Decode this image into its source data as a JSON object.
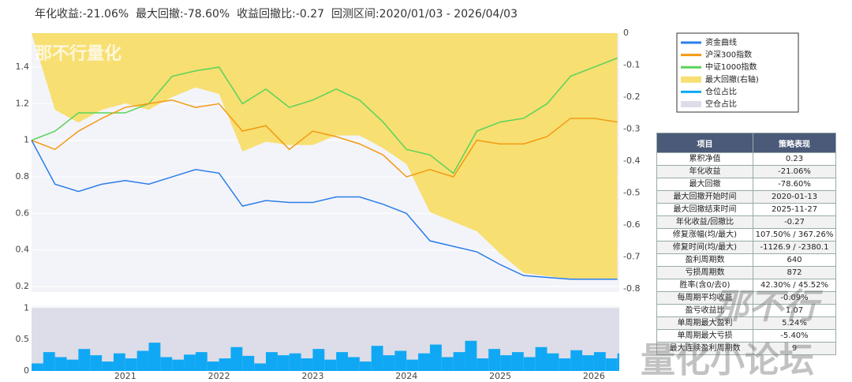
{
  "header": {
    "title": "年化收益:-21.06%  最大回撤:-78.60%  收益回撤比:-0.27  回测区间:2020/01/03 - 2026/04/03"
  },
  "watermarks": [
    "那不行量化",
    "那不行",
    "量化小论坛"
  ],
  "chart_data": [
    {
      "type": "line",
      "x": [
        2020,
        2020.25,
        2020.5,
        2020.75,
        2021,
        2021.25,
        2021.5,
        2021.75,
        2022,
        2022.25,
        2022.5,
        2022.75,
        2023,
        2023.25,
        2023.5,
        2023.75,
        2024,
        2024.25,
        2024.5,
        2024.75,
        2025,
        2025.25,
        2025.5,
        2025.75,
        2026,
        2026.25
      ],
      "xlim": [
        2020,
        2026.27
      ],
      "ylim": [
        0.17,
        1.586
      ],
      "yticks": [
        0.2,
        0.4,
        0.6,
        0.8,
        1,
        1.2,
        1.4
      ],
      "y2lim": [
        -0.81,
        0
      ],
      "y2ticks": [
        -0.8,
        -0.7,
        -0.6,
        -0.5,
        -0.4,
        -0.3,
        -0.2,
        -0.1,
        0
      ],
      "grid": true,
      "series": [
        {
          "name": "资金曲线",
          "color": "#2b7de9",
          "values": [
            1.0,
            0.76,
            0.72,
            0.76,
            0.78,
            0.76,
            0.8,
            0.84,
            0.82,
            0.64,
            0.67,
            0.66,
            0.66,
            0.69,
            0.69,
            0.65,
            0.6,
            0.45,
            0.42,
            0.39,
            0.32,
            0.26,
            0.25,
            0.24,
            0.24,
            0.24
          ]
        },
        {
          "name": "沪深300指数",
          "color": "#f39a12",
          "values": [
            1.0,
            0.95,
            1.05,
            1.12,
            1.18,
            1.2,
            1.22,
            1.18,
            1.2,
            1.05,
            1.08,
            0.95,
            1.05,
            1.02,
            0.98,
            0.92,
            0.8,
            0.84,
            0.8,
            1.0,
            0.98,
            0.98,
            1.02,
            1.12,
            1.12,
            1.1
          ]
        },
        {
          "name": "中证1000指数",
          "color": "#5ad35a",
          "values": [
            1.0,
            1.05,
            1.15,
            1.15,
            1.15,
            1.2,
            1.35,
            1.38,
            1.4,
            1.2,
            1.28,
            1.18,
            1.22,
            1.28,
            1.22,
            1.1,
            0.95,
            0.92,
            0.82,
            1.05,
            1.1,
            1.12,
            1.2,
            1.35,
            1.4,
            1.45
          ]
        },
        {
          "name": "最大回撤(右轴)",
          "color": "#f7df72",
          "axis": "y2",
          "values": [
            0,
            -0.24,
            -0.28,
            -0.24,
            -0.22,
            -0.24,
            -0.2,
            -0.17,
            -0.19,
            -0.37,
            -0.34,
            -0.35,
            -0.35,
            -0.32,
            -0.32,
            -0.36,
            -0.41,
            -0.56,
            -0.59,
            -0.62,
            -0.69,
            -0.75,
            -0.76,
            -0.77,
            -0.77,
            -0.77
          ]
        }
      ]
    },
    {
      "type": "bar",
      "x": [
        2020,
        2020.125,
        2020.25,
        2020.375,
        2020.5,
        2020.625,
        2020.75,
        2020.875,
        2021,
        2021.125,
        2021.25,
        2021.375,
        2021.5,
        2021.625,
        2021.75,
        2021.875,
        2022,
        2022.125,
        2022.25,
        2022.375,
        2022.5,
        2022.625,
        2022.75,
        2022.875,
        2023,
        2023.125,
        2023.25,
        2023.375,
        2023.5,
        2023.625,
        2023.75,
        2023.875,
        2024,
        2024.125,
        2024.25,
        2024.375,
        2024.5,
        2024.625,
        2024.75,
        2024.875,
        2025,
        2025.125,
        2025.25,
        2025.375,
        2025.5,
        2025.625,
        2025.75,
        2025.875,
        2026,
        2026.125,
        2026.25
      ],
      "xlim": [
        2020,
        2026.27
      ],
      "xticks": [
        2021,
        2022,
        2023,
        2024,
        2025,
        2026
      ],
      "ylim": [
        0,
        1.03
      ],
      "yticks": [
        0,
        0.5,
        1
      ],
      "series": [
        {
          "name": "仓位占比",
          "color": "#10a8f5",
          "values": [
            0.12,
            0.3,
            0.22,
            0.18,
            0.35,
            0.25,
            0.15,
            0.28,
            0.2,
            0.32,
            0.45,
            0.22,
            0.18,
            0.26,
            0.3,
            0.15,
            0.2,
            0.38,
            0.24,
            0.12,
            0.3,
            0.25,
            0.28,
            0.2,
            0.35,
            0.18,
            0.3,
            0.22,
            0.15,
            0.4,
            0.25,
            0.32,
            0.18,
            0.28,
            0.42,
            0.22,
            0.3,
            0.48,
            0.2,
            0.35,
            0.25,
            0.3,
            0.22,
            0.38,
            0.28,
            0.2,
            0.33,
            0.25,
            0.3,
            0.2,
            0.28
          ]
        },
        {
          "name": "空仓占比",
          "color": "#dcdde8"
        }
      ]
    }
  ],
  "table": {
    "header": [
      "项目",
      "策略表现"
    ],
    "rows": [
      [
        "累积净值",
        "0.23"
      ],
      [
        "年化收益",
        "-21.06%"
      ],
      [
        "最大回撤",
        "-78.60%"
      ],
      [
        "最大回撤开始时间",
        "2020-01-13"
      ],
      [
        "最大回撤结束时间",
        "2025-11-27"
      ],
      [
        "年化收益/回撤比",
        "-0.27"
      ],
      [
        "修复涨幅(均/最大)",
        "107.50% / 367.26%"
      ],
      [
        "修复时间(均/最大)",
        "-1126.9 / -2380.1"
      ],
      [
        "盈利周期数",
        "640"
      ],
      [
        "亏损周期数",
        "872"
      ],
      [
        "胜率(含0/去0)",
        "42.30% / 45.52%"
      ],
      [
        "每周期平均收益",
        "-0.09%"
      ],
      [
        "盈亏收益比",
        "1.07"
      ],
      [
        "单周期最大盈利",
        "5.24%"
      ],
      [
        "单周期最大亏损",
        "-5.40%"
      ],
      [
        "最大连续盈利周期数",
        "9"
      ]
    ]
  }
}
